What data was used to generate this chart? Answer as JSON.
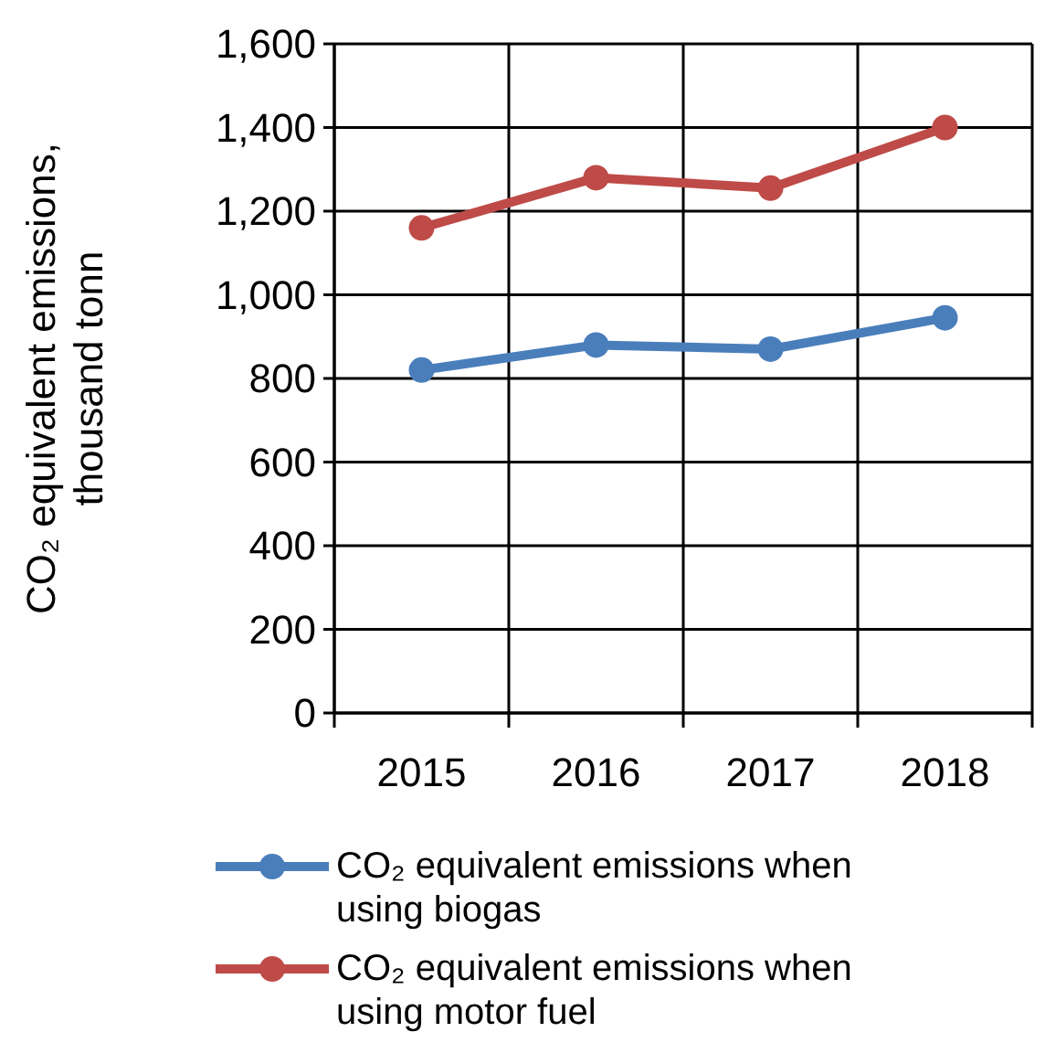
{
  "chart_data": {
    "type": "line",
    "ylabel": "CO₂ equivalent emissions, thousand tonn",
    "categories": [
      "2015",
      "2016",
      "2017",
      "2018"
    ],
    "series": [
      {
        "name": "CO₂ equivalent emissions when using biogas",
        "color": "#4a7ebb",
        "values": [
          820,
          880,
          870,
          945
        ]
      },
      {
        "name": "CO₂ equivalent emissions when using motor fuel",
        "color": "#be4b48",
        "values": [
          1160,
          1280,
          1255,
          1400
        ]
      }
    ],
    "ylim": [
      0,
      1600
    ],
    "yticks": [
      {
        "value": 0,
        "label": "0"
      },
      {
        "value": 200,
        "label": "200"
      },
      {
        "value": 400,
        "label": "400"
      },
      {
        "value": 600,
        "label": "600"
      },
      {
        "value": 800,
        "label": "800"
      },
      {
        "value": 1000,
        "label": "1,000"
      },
      {
        "value": 1200,
        "label": "1,200"
      },
      {
        "value": 1400,
        "label": "1,400"
      },
      {
        "value": 1600,
        "label": "1,600"
      }
    ],
    "grid": true,
    "legend": "bottom",
    "marker": "circle",
    "line_style": "solid"
  }
}
